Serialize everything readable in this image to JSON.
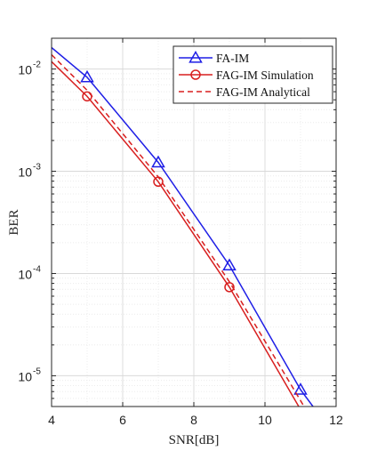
{
  "chart_data": {
    "type": "line",
    "title": "",
    "xlabel": "SNR[dB]",
    "ylabel": "BER",
    "xlim": [
      4,
      12
    ],
    "ylim": [
      5e-06,
      0.02
    ],
    "yscale": "log",
    "grid": true,
    "minor_grid": true,
    "legend_position": "top-right",
    "x_ticks": [
      4,
      6,
      8,
      10,
      12
    ],
    "y_ticks": [
      {
        "base": "10",
        "exp": "-5",
        "value": 1e-05
      },
      {
        "base": "10",
        "exp": "-4",
        "value": 0.0001
      },
      {
        "base": "10",
        "exp": "-3",
        "value": 0.001
      },
      {
        "base": "10",
        "exp": "-2",
        "value": 0.01
      }
    ],
    "series": [
      {
        "name": "FA-IM",
        "color": "#1f1fe6",
        "line_style": "solid",
        "marker": "triangle",
        "x": [
          4,
          5,
          7,
          9,
          11,
          11.35
        ],
        "y": [
          0.0162,
          0.0083,
          0.00122,
          0.00012,
          7.3e-06,
          5e-06
        ],
        "marker_x": [
          5,
          7,
          9,
          11
        ]
      },
      {
        "name": "FAG-IM Simulation",
        "color": "#d81f1f",
        "line_style": "solid",
        "marker": "circle",
        "x": [
          4,
          5,
          7,
          9,
          10.95
        ],
        "y": [
          0.0118,
          0.0054,
          0.00079,
          7.35e-05,
          5e-06
        ],
        "marker_x": [
          5,
          7,
          9
        ]
      },
      {
        "name": "FAG-IM Analytical",
        "color": "#d81f1f",
        "line_style": "dashed",
        "marker": "none",
        "x": [
          4,
          5,
          7,
          9,
          11.1
        ],
        "y": [
          0.0138,
          0.0062,
          0.00088,
          8.3e-05,
          5e-06
        ],
        "marker_x": []
      }
    ]
  }
}
